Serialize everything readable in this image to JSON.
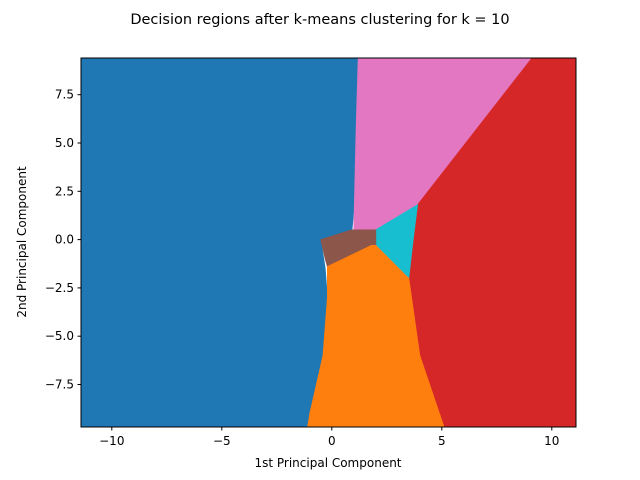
{
  "chart_data": {
    "type": "heatmap",
    "title": "Decision regions after k-means clustering for k = 10",
    "xlabel": "1st Principal Component",
    "ylabel": "2nd Principal Component",
    "xlim": [
      -11.4,
      11.1
    ],
    "ylim": [
      -9.7,
      9.4
    ],
    "xticks": [
      {
        "value": -10,
        "label": "−10"
      },
      {
        "value": -5,
        "label": "−5"
      },
      {
        "value": 0,
        "label": "0"
      },
      {
        "value": 5,
        "label": "5"
      },
      {
        "value": 10,
        "label": "10"
      }
    ],
    "yticks": [
      {
        "value": 7.5,
        "label": "7.5"
      },
      {
        "value": 5.0,
        "label": "5.0"
      },
      {
        "value": 2.5,
        "label": "2.5"
      },
      {
        "value": 0.0,
        "label": "0.0"
      },
      {
        "value": -2.5,
        "label": "−2.5"
      },
      {
        "value": -5.0,
        "label": "−5.0"
      },
      {
        "value": -7.5,
        "label": "−7.5"
      }
    ],
    "grid": false,
    "regions": [
      {
        "color": "#1f77b4",
        "polygon": [
          [
            -11.4,
            9.4
          ],
          [
            1.2,
            9.4
          ],
          [
            1.1,
            5.5
          ],
          [
            1.0,
            1.5
          ],
          [
            0.9,
            0.3
          ],
          [
            -0.5,
            0.0
          ],
          [
            -0.3,
            -1.5
          ],
          [
            -0.2,
            -3.0
          ],
          [
            -0.4,
            -6.0
          ],
          [
            -1.0,
            -9.0
          ],
          [
            -1.1,
            -9.7
          ],
          [
            -11.4,
            -9.7
          ]
        ]
      },
      {
        "color": "#e377c2",
        "polygon": [
          [
            1.2,
            9.4
          ],
          [
            9.1,
            9.4
          ],
          [
            3.9,
            1.8
          ],
          [
            2.0,
            0.5
          ],
          [
            1.0,
            0.5
          ],
          [
            1.1,
            5.5
          ]
        ]
      },
      {
        "color": "#d62728",
        "polygon": [
          [
            9.1,
            9.4
          ],
          [
            11.1,
            9.4
          ],
          [
            11.1,
            -9.7
          ],
          [
            5.1,
            -9.7
          ],
          [
            4.0,
            -6.0
          ],
          [
            3.5,
            -2.0
          ],
          [
            3.7,
            0.0
          ],
          [
            3.9,
            1.8
          ]
        ]
      },
      {
        "color": "#17becf",
        "polygon": [
          [
            3.9,
            1.8
          ],
          [
            3.7,
            0.0
          ],
          [
            3.5,
            -2.0
          ],
          [
            3.4,
            -1.9
          ],
          [
            2.0,
            -0.3
          ],
          [
            2.0,
            0.5
          ]
        ]
      },
      {
        "color": "#8c564b",
        "polygon": [
          [
            -0.5,
            0.0
          ],
          [
            0.9,
            0.5
          ],
          [
            2.0,
            0.5
          ],
          [
            2.0,
            -0.3
          ],
          [
            1.8,
            -0.3
          ],
          [
            -0.2,
            -1.4
          ],
          [
            -0.3,
            -1.0
          ]
        ]
      },
      {
        "color": "#ff7f0e",
        "polygon": [
          [
            -0.2,
            -1.4
          ],
          [
            1.8,
            -0.3
          ],
          [
            2.0,
            -0.3
          ],
          [
            3.4,
            -1.9
          ],
          [
            3.5,
            -2.0
          ],
          [
            4.0,
            -6.0
          ],
          [
            5.1,
            -9.7
          ],
          [
            -1.1,
            -9.7
          ],
          [
            -1.0,
            -9.0
          ],
          [
            -0.4,
            -6.0
          ],
          [
            -0.2,
            -3.0
          ]
        ]
      }
    ]
  }
}
